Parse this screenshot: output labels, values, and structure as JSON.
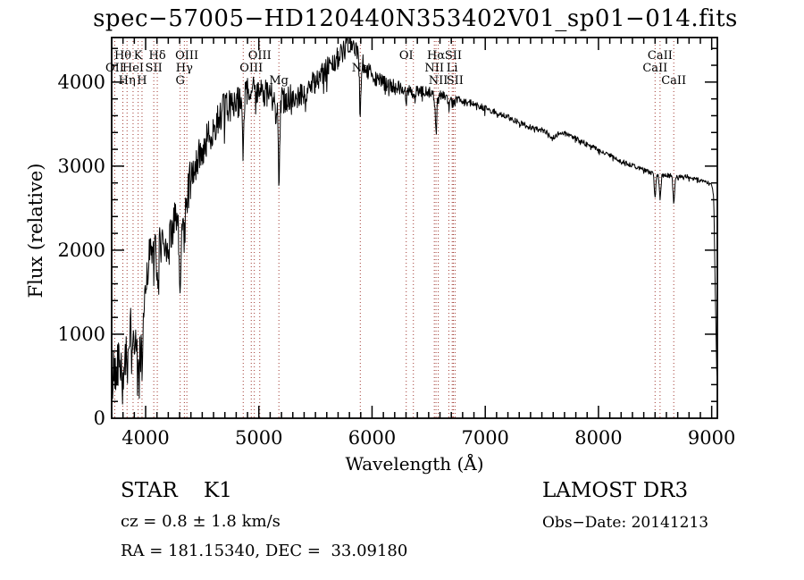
{
  "chart_data": {
    "type": "line",
    "title": "spec−57005−HD120440N353402V01_sp01−014.fits",
    "xlabel": "Wavelength (Å)",
    "ylabel": "Flux (relative)",
    "xlim": [
      3700,
      9050
    ],
    "ylim": [
      0,
      4530
    ],
    "x_major_ticks": [
      4000,
      5000,
      6000,
      7000,
      8000,
      9000
    ],
    "x_minor_step": 100,
    "y_major_ticks": [
      0,
      1000,
      2000,
      3000,
      4000
    ],
    "y_minor_step": 200,
    "grid": false,
    "legend": "none",
    "spectrum_color": "#000000",
    "marker_color": "#a03830",
    "spectral_lines": [
      {
        "wavelength": 3727,
        "label": "OII",
        "row": 2
      },
      {
        "wavelength": 3799,
        "label": "Hθ",
        "row": 1
      },
      {
        "wavelength": 3836,
        "label": "Hη",
        "row": 3
      },
      {
        "wavelength": 3889,
        "label": "HeI",
        "row": 2
      },
      {
        "wavelength": 3934,
        "label": "K",
        "row": 1
      },
      {
        "wavelength": 3968,
        "label": "H",
        "row": 3
      },
      {
        "wavelength": 4072,
        "label": "SII",
        "row": 2
      },
      {
        "wavelength": 4103,
        "label": "Hδ",
        "row": 1
      },
      {
        "wavelength": 4305,
        "label": "G",
        "row": 3
      },
      {
        "wavelength": 4342,
        "label": "Hγ",
        "row": 2
      },
      {
        "wavelength": 4364,
        "label": "OIII",
        "row": 1
      },
      {
        "wavelength": 4862,
        "label": "",
        "row": 0
      },
      {
        "wavelength": 4933,
        "label": "OIII",
        "row": 2
      },
      {
        "wavelength": 4960,
        "label": "",
        "row": 0
      },
      {
        "wavelength": 5008,
        "label": "OIII",
        "row": 1
      },
      {
        "wavelength": 5177,
        "label": "Mg",
        "row": 3
      },
      {
        "wavelength": 5896,
        "label": "Na",
        "row": 2
      },
      {
        "wavelength": 6302,
        "label": "OI",
        "row": 1
      },
      {
        "wavelength": 6365,
        "label": "",
        "row": 0
      },
      {
        "wavelength": 6550,
        "label": "NII",
        "row": 2
      },
      {
        "wavelength": 6565,
        "label": "Hα",
        "row": 1
      },
      {
        "wavelength": 6585,
        "label": "NII",
        "row": 3
      },
      {
        "wavelength": 6678,
        "label": "",
        "row": 0
      },
      {
        "wavelength": 6708,
        "label": "Li",
        "row": 2
      },
      {
        "wavelength": 6718,
        "label": "SII",
        "row": 1
      },
      {
        "wavelength": 6733,
        "label": "SII",
        "row": 3
      },
      {
        "wavelength": 8500,
        "label": "CaII",
        "row": 2
      },
      {
        "wavelength": 8544,
        "label": "CaII",
        "row": 1
      },
      {
        "wavelength": 8665,
        "label": "CaII",
        "row": 3
      }
    ],
    "absorption_features": [
      [
        3727,
        120,
        5
      ],
      [
        3799,
        320,
        7
      ],
      [
        3836,
        300,
        7
      ],
      [
        3889,
        280,
        7
      ],
      [
        3934,
        520,
        8
      ],
      [
        3968,
        480,
        8
      ],
      [
        4072,
        150,
        5
      ],
      [
        4103,
        560,
        7
      ],
      [
        4305,
        750,
        9
      ],
      [
        4342,
        420,
        7
      ],
      [
        4364,
        120,
        4
      ],
      [
        4862,
        650,
        7
      ],
      [
        4933,
        60,
        4
      ],
      [
        4960,
        60,
        4
      ],
      [
        5008,
        60,
        4
      ],
      [
        5177,
        900,
        7
      ],
      [
        5896,
        620,
        7
      ],
      [
        6302,
        100,
        4
      ],
      [
        6365,
        100,
        4
      ],
      [
        6550,
        80,
        4
      ],
      [
        6565,
        480,
        6
      ],
      [
        6585,
        80,
        4
      ],
      [
        6678,
        60,
        4
      ],
      [
        6708,
        60,
        4
      ],
      [
        6718,
        60,
        4
      ],
      [
        6733,
        60,
        4
      ],
      [
        8500,
        260,
        7
      ],
      [
        8544,
        280,
        7
      ],
      [
        8665,
        280,
        7
      ]
    ],
    "continuum": [
      [
        3700,
        300
      ],
      [
        3720,
        650
      ],
      [
        3750,
        700
      ],
      [
        3780,
        640
      ],
      [
        3810,
        800
      ],
      [
        3840,
        900
      ],
      [
        3870,
        1020
      ],
      [
        3900,
        1010
      ],
      [
        3930,
        950
      ],
      [
        3960,
        1000
      ],
      [
        3990,
        1450
      ],
      [
        4020,
        1850
      ],
      [
        4060,
        2020
      ],
      [
        4100,
        2060
      ],
      [
        4150,
        2100
      ],
      [
        4200,
        2120
      ],
      [
        4250,
        2350
      ],
      [
        4300,
        2300
      ],
      [
        4350,
        2580
      ],
      [
        4400,
        2920
      ],
      [
        4450,
        3060
      ],
      [
        4500,
        3200
      ],
      [
        4550,
        3320
      ],
      [
        4600,
        3460
      ],
      [
        4650,
        3600
      ],
      [
        4700,
        3700
      ],
      [
        4750,
        3720
      ],
      [
        4800,
        3780
      ],
      [
        4850,
        3810
      ],
      [
        4900,
        3870
      ],
      [
        4950,
        3930
      ],
      [
        5000,
        3920
      ],
      [
        5050,
        3870
      ],
      [
        5100,
        3830
      ],
      [
        5150,
        3790
      ],
      [
        5200,
        3780
      ],
      [
        5250,
        3810
      ],
      [
        5300,
        3840
      ],
      [
        5350,
        3820
      ],
      [
        5400,
        3880
      ],
      [
        5450,
        3940
      ],
      [
        5500,
        4010
      ],
      [
        5550,
        4080
      ],
      [
        5600,
        4150
      ],
      [
        5650,
        4230
      ],
      [
        5700,
        4290
      ],
      [
        5750,
        4370
      ],
      [
        5800,
        4440
      ],
      [
        5850,
        4400
      ],
      [
        5900,
        4260
      ],
      [
        5950,
        4160
      ],
      [
        6000,
        4090
      ],
      [
        6050,
        4030
      ],
      [
        6100,
        4000
      ],
      [
        6150,
        3960
      ],
      [
        6200,
        3950
      ],
      [
        6250,
        3920
      ],
      [
        6300,
        3900
      ],
      [
        6350,
        3880
      ],
      [
        6400,
        3890
      ],
      [
        6450,
        3890
      ],
      [
        6500,
        3880
      ],
      [
        6550,
        3870
      ],
      [
        6600,
        3850
      ],
      [
        6650,
        3830
      ],
      [
        6700,
        3810
      ],
      [
        6750,
        3800
      ],
      [
        6800,
        3780
      ],
      [
        6850,
        3760
      ],
      [
        6900,
        3740
      ],
      [
        6950,
        3710
      ],
      [
        7000,
        3690
      ],
      [
        7050,
        3660
      ],
      [
        7100,
        3640
      ],
      [
        7150,
        3610
      ],
      [
        7200,
        3580
      ],
      [
        7250,
        3550
      ],
      [
        7300,
        3520
      ],
      [
        7350,
        3490
      ],
      [
        7400,
        3460
      ],
      [
        7450,
        3440
      ],
      [
        7500,
        3430
      ],
      [
        7550,
        3400
      ],
      [
        7600,
        3340
      ],
      [
        7650,
        3390
      ],
      [
        7700,
        3390
      ],
      [
        7750,
        3360
      ],
      [
        7800,
        3330
      ],
      [
        7850,
        3300
      ],
      [
        7900,
        3260
      ],
      [
        7950,
        3230
      ],
      [
        8000,
        3200
      ],
      [
        8050,
        3160
      ],
      [
        8100,
        3130
      ],
      [
        8150,
        3100
      ],
      [
        8200,
        3060
      ],
      [
        8250,
        3030
      ],
      [
        8300,
        3010
      ],
      [
        8350,
        2980
      ],
      [
        8400,
        2960
      ],
      [
        8450,
        2930
      ],
      [
        8500,
        2910
      ],
      [
        8550,
        2890
      ],
      [
        8600,
        2900
      ],
      [
        8650,
        2880
      ],
      [
        8700,
        2860
      ],
      [
        8750,
        2880
      ],
      [
        8800,
        2870
      ],
      [
        8850,
        2850
      ],
      [
        8900,
        2830
      ],
      [
        8950,
        2810
      ],
      [
        9000,
        2780
      ],
      [
        9018,
        2640
      ],
      [
        9032,
        1500
      ],
      [
        9044,
        600
      ],
      [
        9050,
        480
      ]
    ],
    "noise_profile": [
      [
        3700,
        320
      ],
      [
        3900,
        300
      ],
      [
        4100,
        260
      ],
      [
        4350,
        230
      ],
      [
        4600,
        200
      ],
      [
        5000,
        175
      ],
      [
        5400,
        150
      ],
      [
        5800,
        125
      ],
      [
        6100,
        95
      ],
      [
        6400,
        70
      ],
      [
        6700,
        50
      ],
      [
        7000,
        38
      ],
      [
        7500,
        30
      ],
      [
        8000,
        26
      ],
      [
        8600,
        30
      ],
      [
        9050,
        22
      ]
    ]
  },
  "annotations": {
    "object_class": "STAR    K1",
    "survey": "LAMOST DR3",
    "cz_line": "cz = 0.8 ± 1.8 km/s",
    "obs_date": "Obs−Date: 20141213",
    "radec_line": "RA = 181.15340, DEC =  33.09180"
  }
}
